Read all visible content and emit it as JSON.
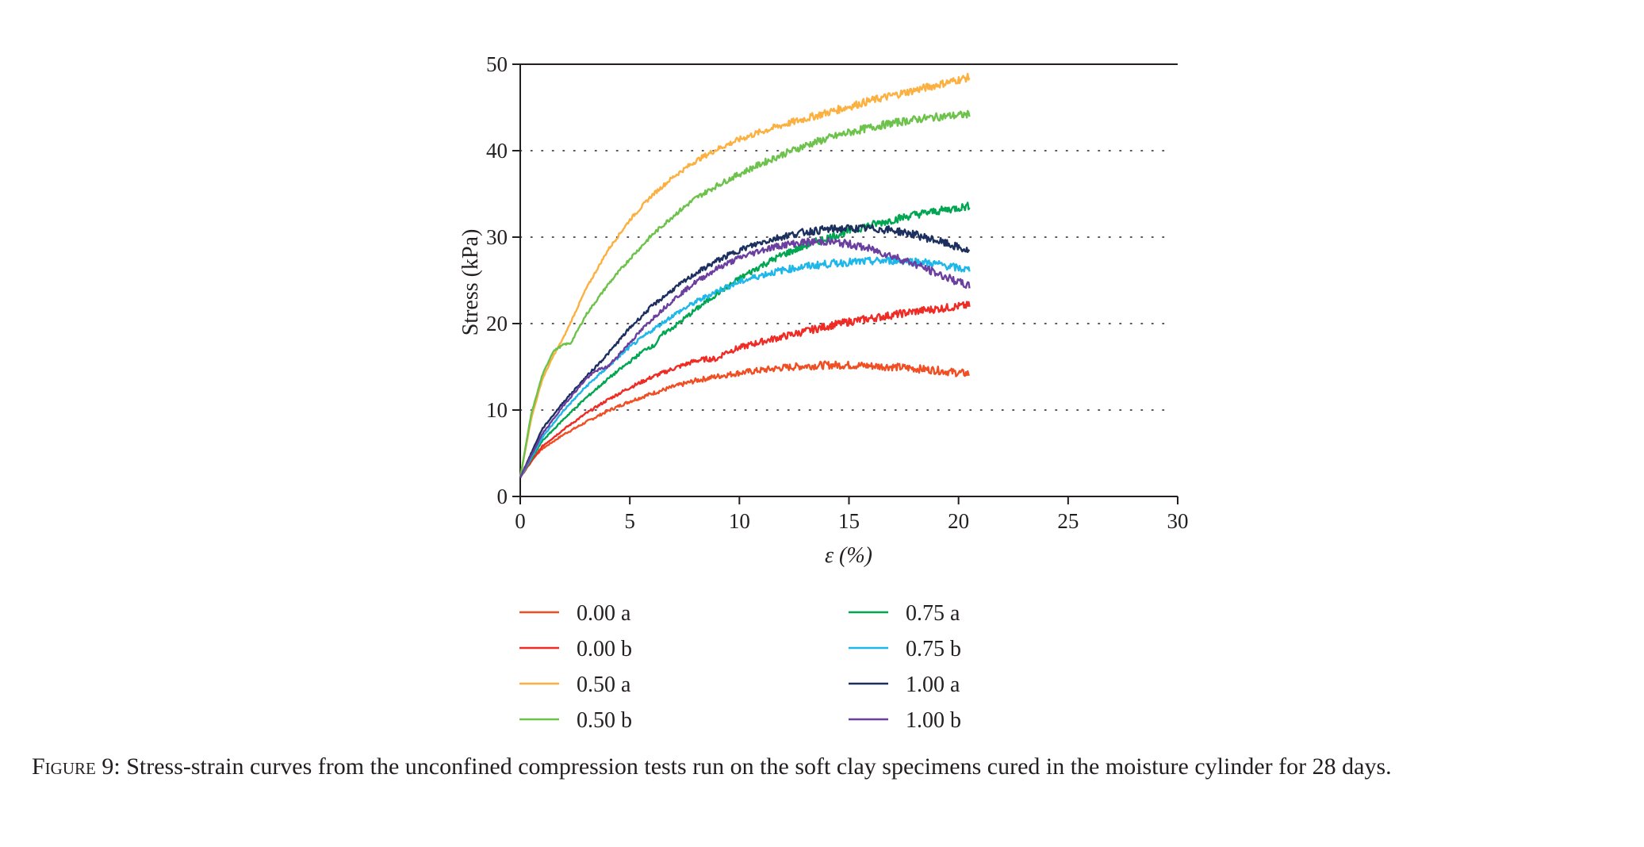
{
  "chart_data": {
    "type": "line",
    "xlabel": "ε (%)",
    "ylabel": "Stress (kPa)",
    "xlim": [
      0,
      30
    ],
    "ylim": [
      0,
      50
    ],
    "xticks": [
      0,
      5,
      10,
      15,
      20,
      25,
      30
    ],
    "yticks": [
      0,
      10,
      20,
      30,
      40,
      50
    ],
    "grid": "horizontal dotted at 10, 20, 30, 40",
    "legend_position": "below, two columns",
    "series": [
      {
        "name": "0.00 a",
        "color": "#f04e23",
        "x": [
          0,
          0.5,
          1,
          2,
          3,
          4,
          5,
          6,
          7,
          8,
          9,
          10,
          11,
          12,
          13,
          14,
          15,
          16,
          17,
          18,
          19,
          20,
          20.5
        ],
        "y": [
          2.2,
          4.2,
          5.5,
          7.2,
          8.6,
          9.9,
          11.0,
          11.9,
          12.7,
          13.4,
          13.9,
          14.3,
          14.6,
          14.9,
          15.1,
          15.2,
          15.2,
          15.1,
          15.0,
          14.8,
          14.6,
          14.3,
          14.2
        ]
      },
      {
        "name": "0.00 b",
        "color": "#ee2b24",
        "x": [
          0,
          1,
          2,
          3,
          4,
          5,
          6,
          7,
          8,
          8.5,
          9,
          9.3,
          10,
          11,
          12,
          13,
          14,
          15,
          16,
          17,
          18,
          19,
          20,
          20.5
        ],
        "y": [
          2.2,
          5.8,
          7.8,
          9.6,
          11.2,
          12.6,
          13.8,
          14.8,
          15.7,
          15.9,
          15.9,
          16.6,
          17.2,
          17.9,
          18.5,
          19.1,
          19.7,
          20.2,
          20.6,
          21.0,
          21.4,
          21.7,
          22.0,
          22.1
        ]
      },
      {
        "name": "0.50 a",
        "color": "#fbb040",
        "x": [
          0,
          0.5,
          1,
          1.5,
          2,
          3,
          4,
          5,
          6,
          7,
          8,
          9,
          10,
          11,
          12,
          13,
          14,
          15,
          16,
          17,
          18,
          19,
          20,
          20.5
        ],
        "y": [
          2.2,
          9.0,
          13.5,
          16.2,
          18.5,
          24.0,
          28.5,
          32.0,
          34.8,
          37.0,
          38.8,
          40.2,
          41.3,
          42.2,
          43.0,
          43.7,
          44.4,
          45.1,
          45.8,
          46.4,
          47.0,
          47.6,
          48.2,
          48.5
        ]
      },
      {
        "name": "0.50 b",
        "color": "#6cc24a",
        "x": [
          0,
          0.5,
          1,
          1.5,
          2,
          2.3,
          3,
          4,
          5,
          6,
          7,
          8,
          9,
          10,
          11,
          12,
          13,
          14,
          15,
          16,
          17,
          18,
          19,
          20,
          20.5
        ],
        "y": [
          2.2,
          9.5,
          14.0,
          16.8,
          17.6,
          17.7,
          21.0,
          24.5,
          27.5,
          30.2,
          32.5,
          34.5,
          36.0,
          37.3,
          38.5,
          39.6,
          40.6,
          41.4,
          42.1,
          42.7,
          43.2,
          43.6,
          43.9,
          44.1,
          44.2
        ]
      },
      {
        "name": "0.75 a",
        "color": "#00a651",
        "x": [
          0,
          1,
          2,
          3,
          4,
          5,
          5.8,
          6.1,
          6.5,
          7,
          8,
          9,
          10,
          11,
          12,
          13,
          14,
          15,
          16,
          17,
          18,
          19,
          20,
          20.5
        ],
        "y": [
          2.2,
          6.4,
          9.0,
          11.4,
          13.6,
          15.6,
          17.2,
          17.4,
          18.8,
          19.6,
          21.6,
          23.5,
          25.2,
          26.7,
          28.0,
          29.0,
          29.9,
          30.7,
          31.4,
          32.0,
          32.6,
          33.0,
          33.4,
          33.6
        ]
      },
      {
        "name": "0.75 b",
        "color": "#1fb7ea",
        "x": [
          0,
          1,
          2,
          3,
          4,
          5,
          6,
          7,
          8,
          9,
          10,
          11,
          12,
          13,
          14,
          15,
          16,
          17,
          18,
          19,
          20,
          20.5
        ],
        "y": [
          2.2,
          6.8,
          10.0,
          12.7,
          15.0,
          17.3,
          19.2,
          21.0,
          22.5,
          23.8,
          24.8,
          25.6,
          26.2,
          26.6,
          26.9,
          27.1,
          27.2,
          27.3,
          27.2,
          26.9,
          26.4,
          26.2
        ]
      },
      {
        "name": "1.00 a",
        "color": "#1c2f5e",
        "x": [
          0,
          1,
          2,
          3,
          4,
          5,
          6,
          7,
          8,
          9,
          10,
          11,
          12,
          13,
          14,
          15,
          16,
          17,
          18,
          19,
          20,
          20.5
        ],
        "y": [
          2.2,
          7.8,
          11.0,
          13.8,
          16.5,
          19.5,
          22.0,
          24.0,
          25.8,
          27.3,
          28.5,
          29.4,
          30.1,
          30.6,
          30.9,
          31.0,
          31.0,
          30.8,
          30.3,
          29.6,
          28.8,
          28.3
        ]
      },
      {
        "name": "1.00 b",
        "color": "#6b3fa0",
        "x": [
          0,
          1,
          2,
          3,
          3.5,
          4,
          5,
          6,
          7,
          8,
          9,
          10,
          11,
          12,
          13,
          14,
          15,
          16,
          17,
          18,
          19,
          20,
          20.5
        ],
        "y": [
          2.2,
          7.2,
          10.6,
          13.6,
          14.6,
          15.0,
          17.8,
          20.5,
          22.8,
          24.8,
          26.4,
          27.6,
          28.5,
          29.1,
          29.4,
          29.5,
          29.2,
          28.6,
          27.8,
          26.9,
          25.8,
          24.8,
          24.3
        ]
      }
    ]
  },
  "caption": {
    "label": "Figure 9:",
    "text": " Stress-strain curves from the unconfined compression tests run on the soft clay specimens cured in the moisture cylinder for 28 days."
  }
}
